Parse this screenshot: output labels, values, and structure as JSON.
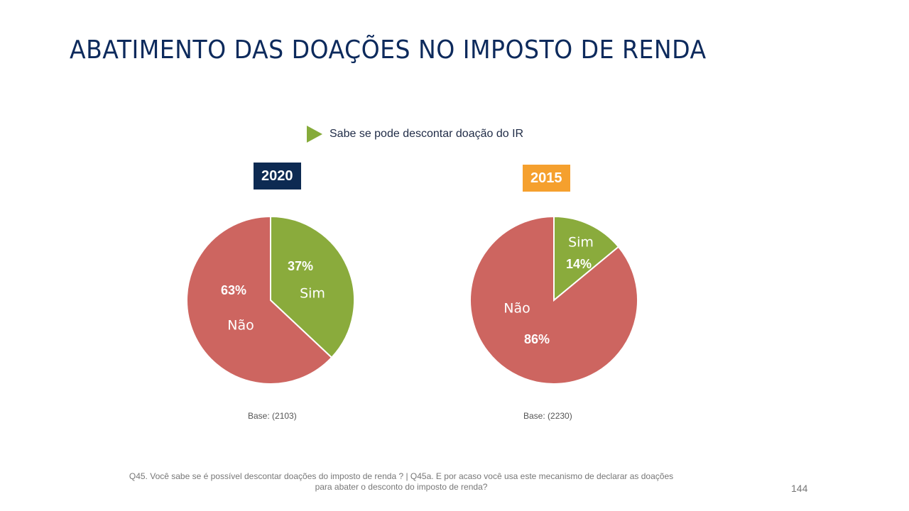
{
  "title": "ABATIMENTO DAS DOAÇÕES NO IMPOSTO DE RENDA",
  "legend_label": "Sabe se pode descontar doação do IR",
  "colors": {
    "sim": "#8aab3c",
    "nao": "#cd6560",
    "year2020": "#0d2a52",
    "year2015": "#f5a02e",
    "legend": "#86ab3a"
  },
  "chart_data": [
    {
      "type": "pie",
      "title": "2020",
      "slices": [
        {
          "label": "Sim",
          "value": 37,
          "value_label": "37%"
        },
        {
          "label": "Não",
          "value": 63,
          "value_label": "63%"
        }
      ],
      "base": "Base: (2103)"
    },
    {
      "type": "pie",
      "title": "2015",
      "slices": [
        {
          "label": "Sim",
          "value": 14,
          "value_label": "14%"
        },
        {
          "label": "Não",
          "value": 86,
          "value_label": "86%"
        }
      ],
      "base": "Base: (2230)"
    }
  ],
  "footnote_line1": "Q45. Você sabe se é possível descontar doações do imposto de renda ? | Q45a. E por acaso você usa este mecanismo de declarar as doações",
  "footnote_line2": "para abater o desconto do imposto de renda?",
  "page_number": "144"
}
